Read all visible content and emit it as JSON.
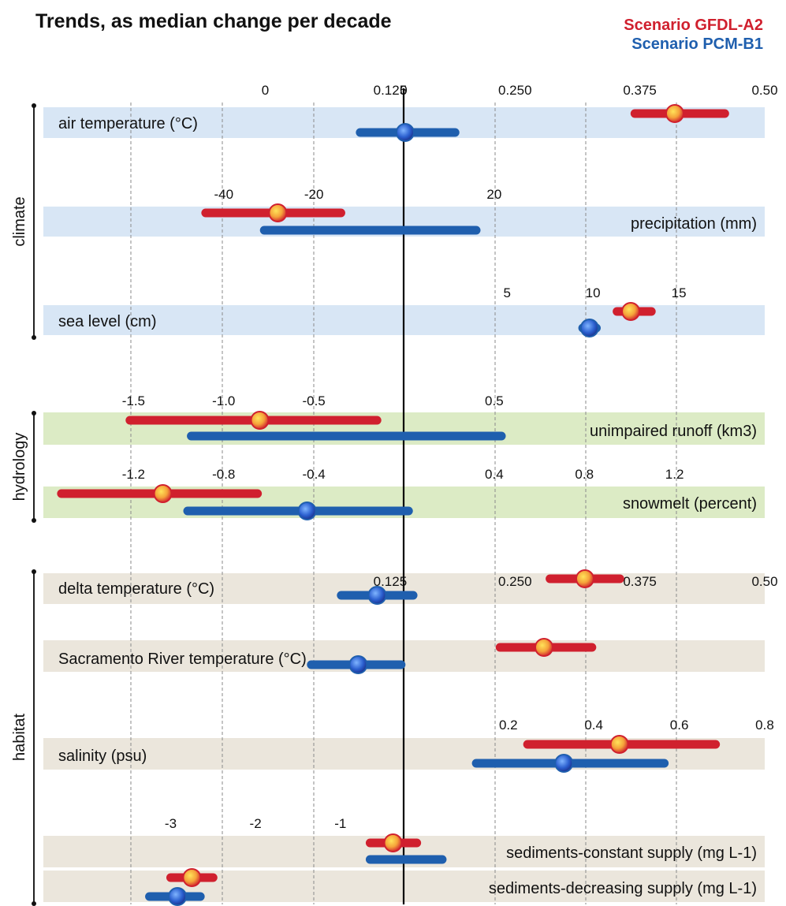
{
  "chart_data": {
    "type": "dot-range",
    "title": "Trends, as median change per decade",
    "legend": {
      "placement": "top-right",
      "entries": [
        {
          "label": "Scenario GFDL-A2",
          "color": "#d0202e"
        },
        {
          "label": "Scenario PCM-B1",
          "color": "#1f5fae"
        }
      ]
    },
    "groups": [
      {
        "name": "climate",
        "band_color": "#d8e6f5"
      },
      {
        "name": "hydrology",
        "band_color": "#dcebc5"
      },
      {
        "name": "habitat",
        "band_color": "#ebe6dc"
      }
    ],
    "rows": [
      {
        "group": "climate",
        "label": "air temperature (°C)",
        "label_side": "left",
        "axis": {
          "min": -0.2222,
          "max": 0.5,
          "ticks": [
            "0",
            "0.125",
            "0.250",
            "0.375",
            "0.50"
          ],
          "tick_values": [
            0,
            0.125,
            0.25,
            0.375,
            0.5
          ]
        },
        "series": [
          {
            "name": "Scenario GFDL-A2",
            "low": 0.37,
            "high": 0.46,
            "median": 0.41
          },
          {
            "name": "Scenario PCM-B1",
            "low": 0.095,
            "high": 0.19,
            "median": 0.14
          }
        ]
      },
      {
        "group": "climate",
        "label": "precipitation (mm)",
        "label_side": "right",
        "axis": {
          "min": -80,
          "max": 80,
          "ticks": [
            "-40",
            "-20",
            "20"
          ],
          "tick_values": [
            -40,
            -20,
            20
          ]
        },
        "series": [
          {
            "name": "Scenario GFDL-A2",
            "low": -44,
            "high": -14,
            "median": -28
          },
          {
            "name": "Scenario PCM-B1",
            "low": -31,
            "high": 16,
            "median": null
          }
        ]
      },
      {
        "group": "climate",
        "label": "sea level (cm)",
        "label_side": "left",
        "axis": {
          "min": -22,
          "max": 20,
          "ticks": [
            "5",
            "10",
            "15"
          ],
          "tick_values": [
            5,
            10,
            15
          ]
        },
        "series": [
          {
            "name": "Scenario GFDL-A2",
            "low": 11.4,
            "high": 13.4,
            "median": 12.2
          },
          {
            "name": "Scenario PCM-B1",
            "low": 9.4,
            "high": 10.2,
            "median": 9.8
          }
        ]
      },
      {
        "group": "hydrology",
        "label": "unimpaired runoff (km3)",
        "label_side": "right",
        "axis": {
          "min": -2,
          "max": 2,
          "ticks": [
            "-1.5",
            "-1.0",
            "-0.5",
            "0.5"
          ],
          "tick_values": [
            -1.5,
            -1.0,
            -0.5,
            0.5
          ]
        },
        "series": [
          {
            "name": "Scenario GFDL-A2",
            "low": -1.52,
            "high": -0.15,
            "median": -0.8
          },
          {
            "name": "Scenario PCM-B1",
            "low": -1.18,
            "high": 0.54,
            "median": null
          }
        ]
      },
      {
        "group": "hydrology",
        "label": "snowmelt (percent)",
        "label_side": "right",
        "axis": {
          "min": -1.6,
          "max": 1.6,
          "ticks": [
            "-1.2",
            "-0.8",
            "-0.4",
            "0.4",
            "0.8",
            "1.2"
          ],
          "tick_values": [
            -1.2,
            -0.8,
            -0.4,
            0.4,
            0.8,
            1.2
          ]
        },
        "series": [
          {
            "name": "Scenario GFDL-A2",
            "low": -1.52,
            "high": -0.65,
            "median": -1.07
          },
          {
            "name": "Scenario PCM-B1",
            "low": -0.96,
            "high": 0.02,
            "median": -0.43
          }
        ]
      },
      {
        "group": "habitat",
        "label": "delta temperature (°C)",
        "label_side": "left",
        "axis": {
          "min": -0.2222,
          "max": 0.5,
          "ticks": [
            "0.125",
            "0.250",
            "0.375",
            "0.50"
          ],
          "tick_values": [
            0.125,
            0.25,
            0.375,
            0.5
          ]
        },
        "series": [
          {
            "name": "Scenario GFDL-A2",
            "low": 0.285,
            "high": 0.355,
            "median": 0.32
          },
          {
            "name": "Scenario PCM-B1",
            "low": 0.076,
            "high": 0.148,
            "median": 0.112
          }
        ]
      },
      {
        "group": "habitat",
        "label": "Sacramento River temperature (°C)",
        "label_side": "left",
        "axis": {
          "min": -0.2222,
          "max": 0.5,
          "ticks": [],
          "tick_values": []
        },
        "series": [
          {
            "name": "Scenario GFDL-A2",
            "low": 0.235,
            "high": 0.327,
            "median": 0.279
          },
          {
            "name": "Scenario PCM-B1",
            "low": 0.046,
            "high": 0.136,
            "median": 0.093
          }
        ]
      },
      {
        "group": "habitat",
        "label": "salinity (psu)",
        "label_side": "left",
        "axis": {
          "min": -0.888,
          "max": 0.8,
          "ticks": [
            "0.2",
            "0.4",
            "0.6",
            "0.8"
          ],
          "tick_values": [
            0.2,
            0.4,
            0.6,
            0.8
          ]
        },
        "series": [
          {
            "name": "Scenario GFDL-A2",
            "low": 0.245,
            "high": 0.685,
            "median": 0.46
          },
          {
            "name": "Scenario PCM-B1",
            "low": 0.125,
            "high": 0.565,
            "median": 0.33
          }
        ]
      },
      {
        "group": "habitat",
        "label": "sediments-constant supply (mg L-1)",
        "label_side": "right",
        "axis": {
          "min": -4.5,
          "max": 4.0,
          "ticks": [
            "-3",
            "-2",
            "-1"
          ],
          "tick_values": [
            -3,
            -2,
            -1
          ]
        },
        "series": [
          {
            "name": "Scenario GFDL-A2",
            "low": -0.65,
            "high": -0.1,
            "median": -0.38
          },
          {
            "name": "Scenario PCM-B1",
            "low": -0.65,
            "high": 0.2,
            "median": null
          }
        ]
      },
      {
        "group": "habitat",
        "label": "sediments-decreasing supply (mg L-1)",
        "label_side": "right",
        "axis": {
          "min": -4.5,
          "max": 4.0,
          "ticks": [],
          "tick_values": []
        },
        "series": [
          {
            "name": "Scenario GFDL-A2",
            "low": -3.0,
            "high": -2.5,
            "median": -2.75
          },
          {
            "name": "Scenario PCM-B1",
            "low": -3.25,
            "high": -2.65,
            "median": -2.92
          }
        ]
      }
    ]
  }
}
